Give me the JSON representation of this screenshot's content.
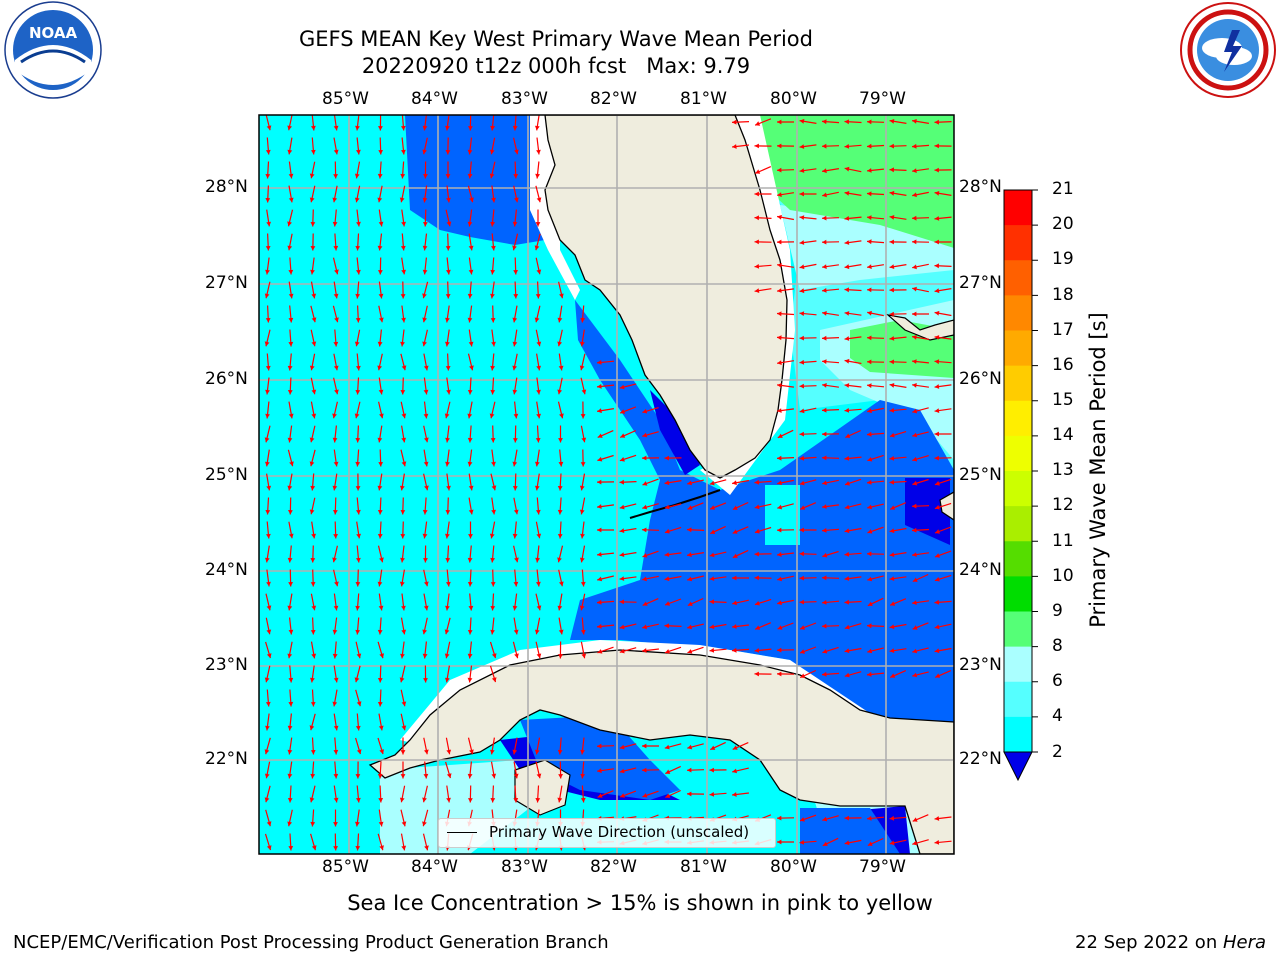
{
  "title": {
    "line1": "GEFS MEAN Key West Primary Wave Mean Period",
    "line2": "20220920 t12z 000h fcst   Max: 9.79"
  },
  "logos": {
    "left": {
      "name": "NOAA",
      "text": "NOAA"
    },
    "right": {
      "name": "National Weather Service"
    }
  },
  "map": {
    "lon_labels": [
      "85°W",
      "84°W",
      "83°W",
      "82°W",
      "81°W",
      "80°W",
      "79°W"
    ],
    "lat_labels": [
      "28°N",
      "27°N",
      "26°N",
      "25°N",
      "24°N",
      "23°N",
      "22°N"
    ],
    "legend_label": "Primary Wave Direction (unscaled)",
    "colors": {
      "land": "#efedde",
      "coast": "#000000",
      "arrow": "#ff0000",
      "grid": "#b0b0b0",
      "period_2_4": "#0064ff",
      "period_4_6": "#00ffff",
      "period_6_8": "#55ffff",
      "period_8_9": "#aaffff",
      "period_9_10": "#55ff77",
      "period_lt2": "#0000e8"
    }
  },
  "colorbar": {
    "label": "Primary Wave Mean Period [s]",
    "ticks": [
      "21",
      "20",
      "19",
      "18",
      "17",
      "16",
      "15",
      "14",
      "13",
      "12",
      "11",
      "10",
      "9",
      "8",
      "6",
      "4",
      "2"
    ],
    "colors": [
      "#ff0000",
      "#ff3000",
      "#ff6000",
      "#ff8800",
      "#ffaa00",
      "#ffcc00",
      "#ffee00",
      "#eeff00",
      "#ccff00",
      "#aaee00",
      "#55dd00",
      "#00dd00",
      "#55ff77",
      "#aaffff",
      "#55ffff",
      "#00ffff",
      "#0064ff"
    ],
    "under_color": "#0000e8"
  },
  "footer": {
    "sea_ice": "Sea Ice Concentration > 15% is shown in pink to yellow",
    "branch": "NCEP/EMC/Verification Post Processing Product Generation Branch",
    "date": "22 Sep 2022 on ",
    "host": "Hera"
  }
}
